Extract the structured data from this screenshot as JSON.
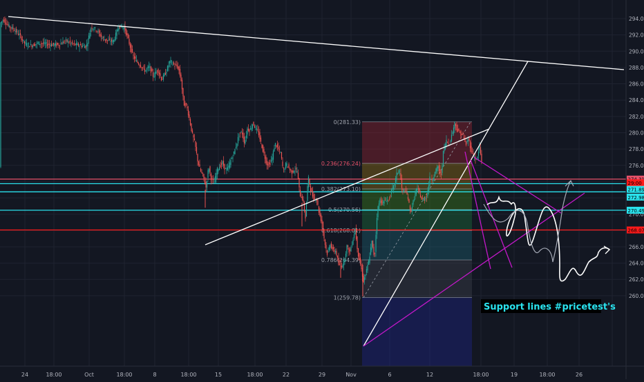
{
  "chart_data": {
    "type": "candlestick",
    "title": "",
    "xlabel": "",
    "ylabel": "",
    "ylim": [
      259,
      295
    ],
    "grid": true,
    "colors": {
      "background": "#131722",
      "grid": "#1f2330",
      "axis_text": "#b2b5be",
      "up": "#26a69a",
      "down": "#ef5350",
      "trendline": "#ffffff",
      "channel": "#c318c9",
      "cyan_line": "#2ae3ee",
      "red_line": "#ff1a1a",
      "note_bg": "#000000",
      "note_text": "#2ae3ee"
    },
    "y_ticks": [
      "294.00",
      "292.00",
      "290.00",
      "288.00",
      "286.00",
      "284.00",
      "282.00",
      "280.00",
      "278.00",
      "276.00",
      "274.00",
      "272.00",
      "270.00",
      "268.00",
      "266.00",
      "264.00",
      "262.00",
      "260.00"
    ],
    "x_ticks": [
      "24",
      "18:00",
      "Oct",
      "18:00",
      "8",
      "18:00",
      "15",
      "18:00",
      "22",
      "29",
      "Nov",
      "6",
      "12",
      "18:00",
      "19",
      "18:00",
      "26"
    ],
    "price_tags": [
      {
        "label": "274.31",
        "price": 274.31,
        "color": "#e8526a"
      },
      {
        "label": "29:00",
        "price": 273.85,
        "color": "#ff1a1a"
      },
      {
        "label": "271.89",
        "price": 273.05,
        "color": "#2ae3ee"
      },
      {
        "label": "272.98",
        "price": 272.1,
        "color": "#2ae3ee"
      },
      {
        "label": "270.49",
        "price": 270.49,
        "color": "#2ae3ee"
      },
      {
        "label": "268.07",
        "price": 268.07,
        "color": "#ff1a1a"
      }
    ],
    "horizontal_lines": [
      {
        "price": 274.31,
        "color": "#e8526a"
      },
      {
        "price": 273.75,
        "color": "#2ae3ee"
      },
      {
        "price": 272.75,
        "color": "#2ae3ee"
      },
      {
        "price": 270.49,
        "color": "#2ae3ee"
      },
      {
        "price": 268.07,
        "color": "#ff1a1a"
      }
    ],
    "fibonacci": {
      "high": 281.33,
      "low": 259.78,
      "levels": [
        {
          "label": "0(281.33)",
          "price": 281.33
        },
        {
          "label": "0.236(276.24)",
          "price": 276.24
        },
        {
          "label": "0.382(273.10)",
          "price": 273.1
        },
        {
          "label": "0.5(270.56)",
          "price": 270.56
        },
        {
          "label": "0.618(268.01)",
          "price": 268.01
        },
        {
          "label": "0.786(264.39)",
          "price": 264.39
        },
        {
          "label": "1(259.78)",
          "price": 259.78
        }
      ],
      "zone_colors": [
        "#8b2331",
        "#8a6a16",
        "#3a7a1c",
        "#1a6a3a",
        "#1a5a6a",
        "#3a3f4a",
        "#1c2380"
      ]
    },
    "price_path": [
      [
        0,
        293.4
      ],
      [
        5,
        293.9
      ],
      [
        12,
        293.1
      ],
      [
        20,
        292.7
      ],
      [
        28,
        292.0
      ],
      [
        36,
        290.9
      ],
      [
        45,
        290.7
      ],
      [
        55,
        291.0
      ],
      [
        65,
        290.9
      ],
      [
        75,
        290.8
      ],
      [
        85,
        290.8
      ],
      [
        95,
        291.3
      ],
      [
        105,
        290.9
      ],
      [
        115,
        290.7
      ],
      [
        125,
        290.6
      ],
      [
        132,
        293.0
      ],
      [
        140,
        292.6
      ],
      [
        148,
        291.6
      ],
      [
        156,
        291.3
      ],
      [
        164,
        291.2
      ],
      [
        172,
        293.1
      ],
      [
        180,
        292.9
      ],
      [
        186,
        291.3
      ],
      [
        192,
        289.5
      ],
      [
        198,
        288.7
      ],
      [
        204,
        288.2
      ],
      [
        210,
        287.6
      ],
      [
        216,
        288.1
      ],
      [
        222,
        286.9
      ],
      [
        228,
        287.8
      ],
      [
        234,
        286.5
      ],
      [
        240,
        287.4
      ],
      [
        246,
        288.8
      ],
      [
        252,
        288.3
      ],
      [
        258,
        288.0
      ],
      [
        262,
        286.5
      ],
      [
        266,
        283.5
      ],
      [
        270,
        283.3
      ],
      [
        274,
        281.8
      ],
      [
        278,
        279.9
      ],
      [
        282,
        278.7
      ],
      [
        286,
        276.6
      ],
      [
        290,
        275.3
      ],
      [
        294,
        274.7
      ],
      [
        298,
        273.3
      ],
      [
        302,
        275.9
      ],
      [
        306,
        274.2
      ],
      [
        310,
        273.9
      ],
      [
        314,
        275.4
      ],
      [
        318,
        275.9
      ],
      [
        322,
        276.3
      ],
      [
        326,
        275.5
      ],
      [
        330,
        275.6
      ],
      [
        334,
        276.6
      ],
      [
        338,
        277.4
      ],
      [
        342,
        278.5
      ],
      [
        346,
        279.8
      ],
      [
        350,
        280.1
      ],
      [
        354,
        278.7
      ],
      [
        358,
        280.5
      ],
      [
        362,
        280.3
      ],
      [
        366,
        281.2
      ],
      [
        370,
        280.5
      ],
      [
        374,
        280.0
      ],
      [
        378,
        278.6
      ],
      [
        382,
        277.4
      ],
      [
        386,
        276.2
      ],
      [
        390,
        276.1
      ],
      [
        394,
        276.9
      ],
      [
        398,
        278.7
      ],
      [
        402,
        278.1
      ],
      [
        406,
        277.5
      ],
      [
        410,
        275.3
      ],
      [
        414,
        276.2
      ],
      [
        418,
        275.7
      ],
      [
        422,
        275.1
      ],
      [
        426,
        275.5
      ],
      [
        430,
        275.3
      ],
      [
        434,
        272.4
      ],
      [
        438,
        271.9
      ],
      [
        442,
        269.6
      ],
      [
        446,
        274.6
      ],
      [
        450,
        272.8
      ],
      [
        454,
        271.9
      ],
      [
        458,
        272.0
      ],
      [
        462,
        270.1
      ],
      [
        466,
        268.9
      ],
      [
        470,
        266.5
      ],
      [
        474,
        265.0
      ],
      [
        478,
        266.4
      ],
      [
        482,
        265.5
      ],
      [
        486,
        265.5
      ],
      [
        490,
        263.8
      ],
      [
        494,
        263.6
      ],
      [
        498,
        264.2
      ],
      [
        502,
        266.1
      ],
      [
        506,
        265.3
      ],
      [
        510,
        266.6
      ],
      [
        514,
        268.2
      ],
      [
        518,
        265.2
      ],
      [
        522,
        263.7
      ],
      [
        526,
        261.8
      ],
      [
        530,
        262.9
      ],
      [
        534,
        264.4
      ],
      [
        538,
        266.6
      ],
      [
        542,
        264.6
      ],
      [
        546,
        270.5
      ],
      [
        550,
        271.8
      ],
      [
        554,
        271.3
      ],
      [
        558,
        271.8
      ],
      [
        562,
        271.7
      ],
      [
        566,
        272.7
      ],
      [
        570,
        273.4
      ],
      [
        574,
        274.9
      ],
      [
        578,
        275.6
      ],
      [
        582,
        272.8
      ],
      [
        586,
        272.9
      ],
      [
        590,
        272.2
      ],
      [
        594,
        270.2
      ],
      [
        598,
        271.5
      ],
      [
        602,
        273.0
      ],
      [
        606,
        272.9
      ],
      [
        610,
        271.8
      ],
      [
        614,
        271.8
      ],
      [
        618,
        272.4
      ],
      [
        622,
        274.4
      ],
      [
        626,
        274.3
      ],
      [
        630,
        275.2
      ],
      [
        634,
        275.9
      ],
      [
        638,
        274.5
      ],
      [
        642,
        278.0
      ],
      [
        646,
        279.0
      ],
      [
        650,
        278.6
      ],
      [
        654,
        279.8
      ],
      [
        658,
        281.2
      ],
      [
        662,
        280.3
      ],
      [
        666,
        279.9
      ],
      [
        670,
        279.7
      ],
      [
        674,
        278.5
      ],
      [
        678,
        279.3
      ],
      [
        682,
        277.8
      ],
      [
        686,
        277.1
      ],
      [
        690,
        276.6
      ],
      [
        694,
        278.3
      ],
      [
        698,
        275.8
      ]
    ],
    "annotations": [
      {
        "text": "Support lines #pricetest's"
      }
    ]
  }
}
